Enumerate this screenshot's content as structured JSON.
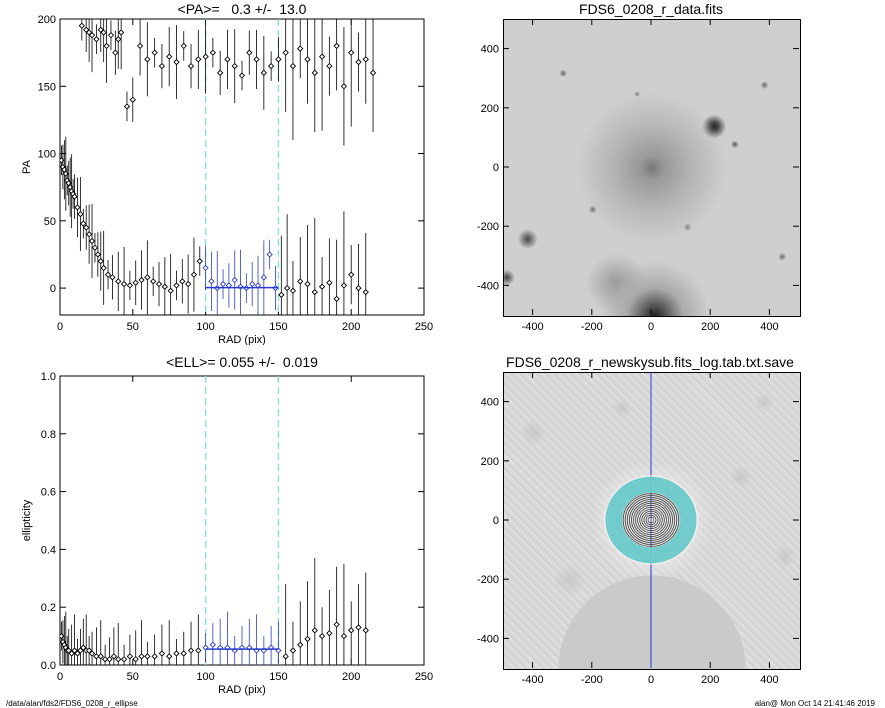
{
  "footer": {
    "path": "/data/alan/fds2/FDS6_0208_r_ellipse",
    "user_date": "alan@  Mon Oct 14 21:41:46 2019"
  },
  "chart_data": [
    {
      "type": "scatter",
      "panel": "pa",
      "title": "<PA>=   0.3 +/-  13.0",
      "xlabel": "RAD (pix)",
      "ylabel": "PA",
      "xlim": [
        0,
        250
      ],
      "ylim": [
        -20,
        200
      ],
      "xticks": [
        0,
        50,
        100,
        150,
        200,
        250
      ],
      "yticks": [
        0,
        50,
        100,
        150,
        200
      ],
      "vlines": [
        100,
        150
      ],
      "fit": {
        "x": [
          100,
          150
        ],
        "y": 0.3
      },
      "series": [
        {
          "role": "low-branch",
          "x": [
            1,
            2,
            3,
            4,
            5,
            6,
            7,
            8,
            9,
            10,
            12,
            14,
            16,
            18,
            20,
            22,
            24,
            26,
            28,
            30,
            33,
            36,
            40,
            44,
            48,
            52,
            56,
            60,
            64,
            68,
            72,
            76,
            80,
            84,
            88,
            92,
            96,
            100,
            104,
            108,
            112,
            116,
            120,
            124,
            128,
            132,
            136,
            140,
            144,
            148,
            152,
            156,
            160,
            165,
            170,
            175,
            180,
            185,
            190,
            195,
            200,
            205,
            210
          ],
          "y": [
            95,
            90,
            88,
            85,
            80,
            78,
            75,
            72,
            70,
            68,
            60,
            55,
            48,
            45,
            40,
            35,
            30,
            25,
            20,
            15,
            10,
            8,
            5,
            3,
            2,
            4,
            6,
            8,
            5,
            3,
            1,
            -2,
            2,
            5,
            3,
            10,
            20,
            15,
            5,
            0,
            3,
            2,
            6,
            1,
            0,
            3,
            2,
            8,
            25,
            0,
            -5,
            0,
            -2,
            5,
            3,
            -3,
            1,
            4,
            -8,
            2,
            10,
            0,
            -3
          ]
        },
        {
          "role": "high-branch",
          "x": [
            15,
            18,
            20,
            22,
            25,
            28,
            30,
            32,
            35,
            38,
            40,
            42,
            46,
            50,
            55,
            60,
            65,
            70,
            75,
            80,
            85,
            90,
            95,
            100,
            105,
            110,
            115,
            120,
            125,
            130,
            135,
            140,
            145,
            150,
            155,
            160,
            165,
            170,
            175,
            180,
            185,
            190,
            195,
            200,
            205,
            210,
            215
          ],
          "y": [
            195,
            192,
            190,
            188,
            185,
            192,
            190,
            180,
            188,
            175,
            185,
            190,
            135,
            140,
            180,
            170,
            175,
            165,
            172,
            168,
            180,
            165,
            170,
            172,
            175,
            160,
            170,
            165,
            158,
            175,
            170,
            160,
            165,
            170,
            175,
            165,
            178,
            170,
            160,
            172,
            165,
            180,
            150,
            175,
            168,
            170,
            160
          ]
        }
      ]
    },
    {
      "type": "scatter",
      "panel": "ell",
      "title": "<ELL>= 0.055 +/-  0.019",
      "xlabel": "RAD (pix)",
      "ylabel": "ellipticity",
      "xlim": [
        0,
        250
      ],
      "ylim": [
        0,
        1.0
      ],
      "xticks": [
        0,
        50,
        100,
        150,
        200,
        250
      ],
      "yticks": [
        0.0,
        0.2,
        0.4,
        0.6,
        0.8,
        1.0
      ],
      "vlines": [
        100,
        150
      ],
      "fit": {
        "x": [
          100,
          150
        ],
        "y": 0.055
      },
      "series": [
        {
          "x": [
            1,
            2,
            3,
            4,
            5,
            6,
            8,
            10,
            12,
            14,
            16,
            18,
            20,
            22,
            25,
            28,
            31,
            34,
            37,
            40,
            44,
            48,
            52,
            56,
            60,
            65,
            70,
            75,
            80,
            85,
            90,
            95,
            100,
            105,
            110,
            115,
            120,
            125,
            130,
            135,
            140,
            145,
            150,
            155,
            160,
            165,
            170,
            175,
            180,
            185,
            190,
            195,
            200,
            205,
            210
          ],
          "y": [
            0.1,
            0.08,
            0.07,
            0.06,
            0.05,
            0.05,
            0.04,
            0.05,
            0.04,
            0.05,
            0.06,
            0.05,
            0.05,
            0.04,
            0.03,
            0.03,
            0.02,
            0.02,
            0.03,
            0.02,
            0.02,
            0.03,
            0.02,
            0.03,
            0.03,
            0.03,
            0.04,
            0.03,
            0.04,
            0.04,
            0.05,
            0.05,
            0.06,
            0.07,
            0.06,
            0.06,
            0.05,
            0.06,
            0.06,
            0.05,
            0.05,
            0.06,
            0.05,
            0.03,
            0.05,
            0.07,
            0.09,
            0.12,
            0.1,
            0.11,
            0.14,
            0.1,
            0.12,
            0.13,
            0.12
          ]
        }
      ]
    },
    {
      "type": "image",
      "panel": "img1",
      "title": "FDS6_0208_r_data.fits",
      "xlim": [
        -500,
        500
      ],
      "ylim": [
        -500,
        500
      ],
      "xticks": [
        -400,
        -200,
        0,
        200,
        400
      ],
      "yticks": [
        -400,
        -200,
        0,
        200,
        400
      ]
    },
    {
      "type": "image",
      "panel": "img2",
      "title": "FDS6_0208_r_newskysub.fits_log.tab.txt.save",
      "xlim": [
        -500,
        500
      ],
      "ylim": [
        -500,
        500
      ],
      "xticks": [
        -400,
        -200,
        0,
        200,
        400
      ],
      "yticks": [
        -400,
        -200,
        0,
        200,
        400
      ]
    }
  ]
}
